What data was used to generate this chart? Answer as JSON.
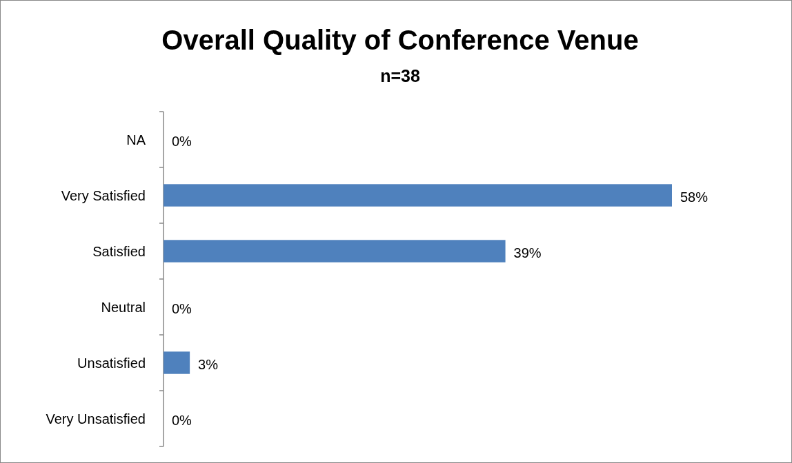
{
  "chart_data": {
    "type": "bar",
    "title": "Overall Quality of Conference Venue",
    "subtitle": "n=38",
    "orientation": "horizontal",
    "categories": [
      "NA",
      "Very Satisfied",
      "Satisfied",
      "Neutral",
      "Unsatisfied",
      "Very Unsatisfied"
    ],
    "values": [
      0,
      58,
      39,
      0,
      3,
      0
    ],
    "value_labels": [
      "0%",
      "58%",
      "39%",
      "0%",
      "3%",
      "0%"
    ],
    "color": "#4f81bd"
  }
}
